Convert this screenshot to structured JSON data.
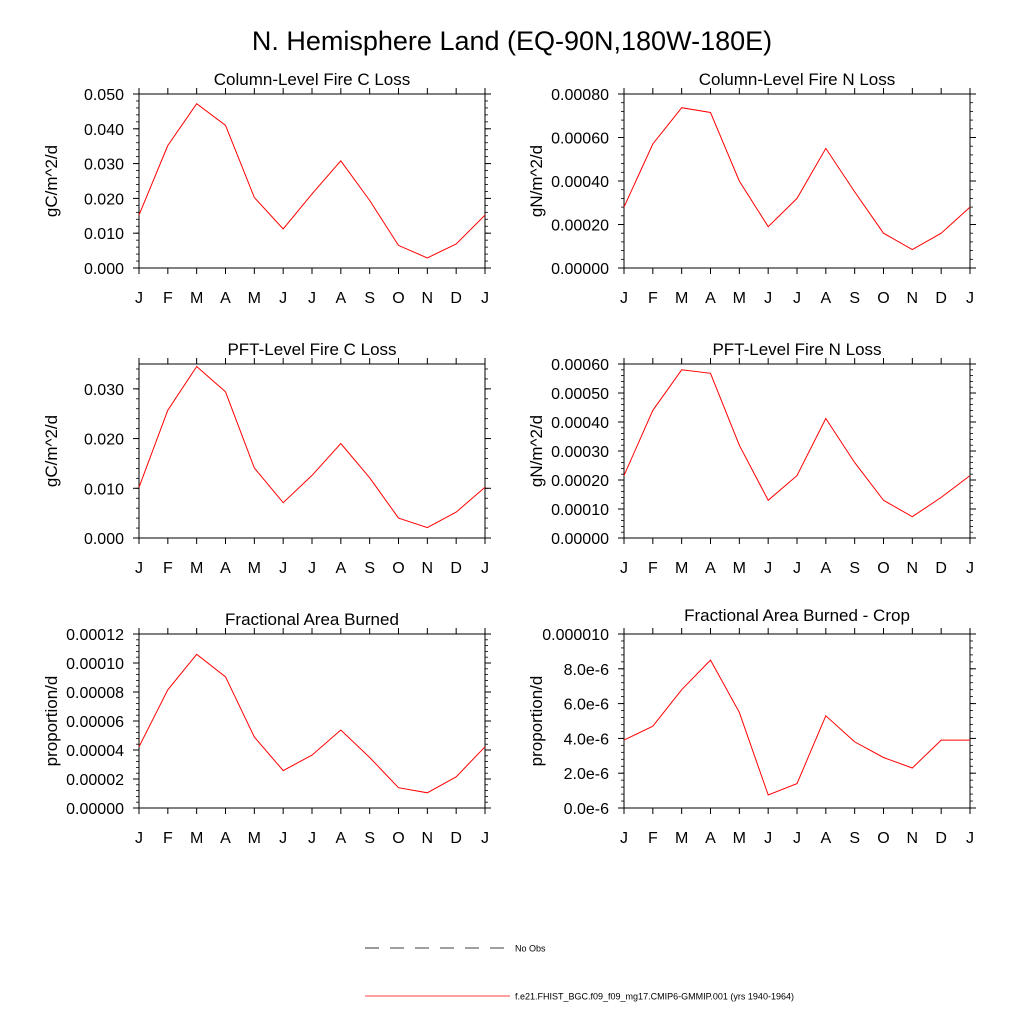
{
  "title": "N. Hemisphere Land (EQ-90N,180W-180E)",
  "legend": {
    "obs_label": "No Obs",
    "model_label": "f.e21.FHIST_BGC.f09_f09_mg17.CMIP6-GMMIP.001 (yrs 1940-1964)",
    "model_color": "#ff0000",
    "obs_color": "#000000"
  },
  "chart_data": [
    {
      "type": "line",
      "title": "Column-Level Fire C Loss",
      "ylabel": "gC/m^2/d",
      "ylim": [
        0,
        0.05
      ],
      "yticks": [
        0,
        0.01,
        0.02,
        0.03,
        0.04,
        0.05
      ],
      "ytick_labels": [
        "0.000",
        "0.010",
        "0.020",
        "0.030",
        "0.040",
        "0.050"
      ],
      "categories": [
        "J",
        "F",
        "M",
        "A",
        "M",
        "J",
        "J",
        "A",
        "S",
        "O",
        "N",
        "D",
        "J"
      ],
      "series": [
        {
          "name": "f.e21.FHIST_BGC.f09_f09_mg17.CMIP6-GMMIP.001 (yrs 1940-1964)",
          "color": "#ff0000",
          "values": [
            0.0152,
            0.0352,
            0.0472,
            0.041,
            0.0203,
            0.0112,
            0.0213,
            0.0308,
            0.0194,
            0.0065,
            0.0029,
            0.0069,
            0.0152
          ]
        }
      ]
    },
    {
      "type": "line",
      "title": "Column-Level Fire N Loss",
      "ylabel": "gN/m^2/d",
      "ylim": [
        0,
        0.0008
      ],
      "yticks": [
        0,
        0.0002,
        0.0004,
        0.0006,
        0.0008
      ],
      "ytick_labels": [
        "0.00000",
        "0.00020",
        "0.00040",
        "0.00060",
        "0.00080"
      ],
      "categories": [
        "J",
        "F",
        "M",
        "A",
        "M",
        "J",
        "J",
        "A",
        "S",
        "O",
        "N",
        "D",
        "J"
      ],
      "series": [
        {
          "name": "f.e21.FHIST_BGC.f09_f09_mg17.CMIP6-GMMIP.001 (yrs 1940-1964)",
          "color": "#ff0000",
          "values": [
            0.00028,
            0.00057,
            0.000737,
            0.000715,
            0.0004,
            0.00019,
            0.00032,
            0.00055,
            0.00035,
            0.00016,
            8.5e-05,
            0.00016,
            0.00028
          ]
        }
      ]
    },
    {
      "type": "line",
      "title": "PFT-Level Fire C Loss",
      "ylabel": "gC/m^2/d",
      "ylim": [
        0,
        0.035
      ],
      "yticks": [
        0,
        0.01,
        0.02,
        0.03
      ],
      "ytick_labels": [
        "0.000",
        "0.010",
        "0.020",
        "0.030"
      ],
      "categories": [
        "J",
        "F",
        "M",
        "A",
        "M",
        "J",
        "J",
        "A",
        "S",
        "O",
        "N",
        "D",
        "J"
      ],
      "series": [
        {
          "name": "f.e21.FHIST_BGC.f09_f09_mg17.CMIP6-GMMIP.001 (yrs 1940-1964)",
          "color": "#ff0000",
          "values": [
            0.0102,
            0.0257,
            0.0345,
            0.0294,
            0.0141,
            0.0071,
            0.0126,
            0.019,
            0.0121,
            0.004,
            0.0021,
            0.0052,
            0.0102
          ]
        }
      ]
    },
    {
      "type": "line",
      "title": "PFT-Level Fire N Loss",
      "ylabel": "gN/m^2/d",
      "ylim": [
        0,
        0.0006
      ],
      "yticks": [
        0,
        0.0001,
        0.0002,
        0.0003,
        0.0004,
        0.0005,
        0.0006
      ],
      "ytick_labels": [
        "0.00000",
        "0.00010",
        "0.00020",
        "0.00030",
        "0.00040",
        "0.00050",
        "0.00060"
      ],
      "categories": [
        "J",
        "F",
        "M",
        "A",
        "M",
        "J",
        "J",
        "A",
        "S",
        "O",
        "N",
        "D",
        "J"
      ],
      "series": [
        {
          "name": "f.e21.FHIST_BGC.f09_f09_mg17.CMIP6-GMMIP.001 (yrs 1940-1964)",
          "color": "#ff0000",
          "values": [
            0.000215,
            0.00044,
            0.00058,
            0.000568,
            0.00032,
            0.00013,
            0.000215,
            0.000412,
            0.00026,
            0.00013,
            7.35e-05,
            0.00014,
            0.000215
          ]
        }
      ]
    },
    {
      "type": "line",
      "title": "Fractional Area Burned",
      "ylabel": "proportion/d",
      "ylim": [
        0,
        0.00012
      ],
      "yticks": [
        0,
        2e-05,
        4e-05,
        6e-05,
        8e-05,
        0.0001,
        0.00012
      ],
      "ytick_labels": [
        "0.00000",
        "0.00002",
        "0.00004",
        "0.00006",
        "0.00008",
        "0.00010",
        "0.00012"
      ],
      "categories": [
        "J",
        "F",
        "M",
        "A",
        "M",
        "J",
        "J",
        "A",
        "S",
        "O",
        "N",
        "D",
        "J"
      ],
      "series": [
        {
          "name": "f.e21.FHIST_BGC.f09_f09_mg17.CMIP6-GMMIP.001 (yrs 1940-1964)",
          "color": "#ff0000",
          "values": [
            4.22e-05,
            8.15e-05,
            0.000106,
            9.05e-05,
            4.9e-05,
            2.58e-05,
            3.65e-05,
            5.38e-05,
            3.48e-05,
            1.4e-05,
            1.05e-05,
            2.15e-05,
            4.22e-05
          ]
        }
      ]
    },
    {
      "type": "line",
      "title": "Fractional Area Burned - Crop",
      "ylabel": "proportion/d",
      "ylim": [
        0,
        1e-05
      ],
      "yticks": [
        0,
        2e-06,
        4e-06,
        6e-06,
        8e-06,
        1e-05
      ],
      "ytick_labels": [
        "0.0e-6",
        "2.0e-6",
        "4.0e-6",
        "6.0e-6",
        "8.0e-6",
        "0.000010"
      ],
      "categories": [
        "J",
        "F",
        "M",
        "A",
        "M",
        "J",
        "J",
        "A",
        "S",
        "O",
        "N",
        "D",
        "J"
      ],
      "series": [
        {
          "name": "f.e21.FHIST_BGC.f09_f09_mg17.CMIP6-GMMIP.001 (yrs 1940-1964)",
          "color": "#ff0000",
          "values": [
            3.9e-06,
            4.7e-06,
            6.8e-06,
            8.5e-06,
            5.5e-06,
            7.5e-07,
            1.4e-06,
            5.3e-06,
            3.8e-06,
            2.9e-06,
            2.3e-06,
            3.9e-06,
            3.9e-06
          ]
        }
      ]
    }
  ]
}
